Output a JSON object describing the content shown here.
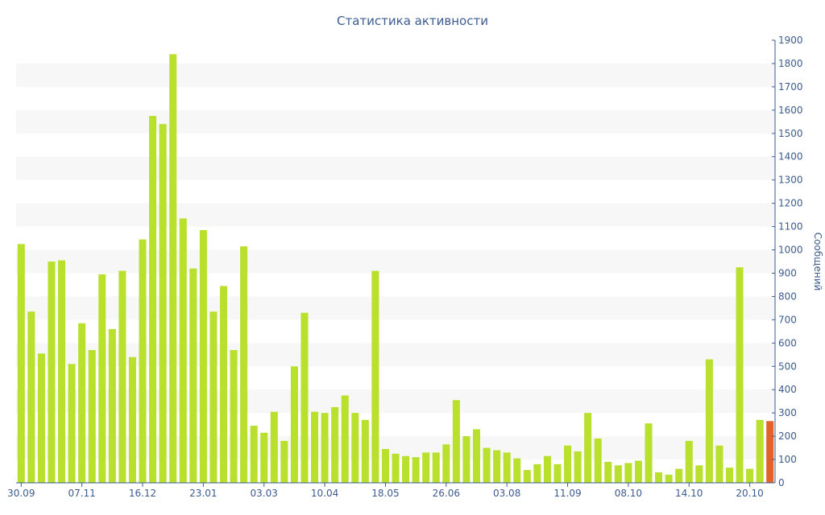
{
  "chart_data": {
    "type": "bar",
    "title": "Статистика активности",
    "ylabel": "Сообщений",
    "xlabel": "",
    "ylim": [
      0,
      1900
    ],
    "yticks": [
      0,
      100,
      200,
      300,
      400,
      500,
      600,
      700,
      800,
      900,
      1000,
      1100,
      1200,
      1300,
      1400,
      1500,
      1600,
      1700,
      1800,
      1900
    ],
    "x_tick_labels": [
      "30.09",
      "07.11",
      "16.12",
      "23.01",
      "03.03",
      "10.04",
      "18.05",
      "26.06",
      "03.08",
      "11.09",
      "08.10",
      "14.10",
      "20.10"
    ],
    "x_tick_positions": [
      0,
      6,
      12,
      18,
      24,
      30,
      36,
      42,
      48,
      54,
      60,
      66,
      72
    ],
    "values": [
      1025,
      735,
      555,
      950,
      955,
      510,
      685,
      570,
      895,
      660,
      910,
      540,
      1045,
      1575,
      1540,
      1840,
      1135,
      920,
      1085,
      735,
      845,
      570,
      1015,
      245,
      215,
      305,
      180,
      500,
      730,
      305,
      300,
      325,
      375,
      300,
      270,
      910,
      145,
      125,
      115,
      110,
      130,
      130,
      165,
      355,
      200,
      230,
      150,
      140,
      130,
      105,
      55,
      80,
      115,
      80,
      160,
      135,
      300,
      190,
      90,
      75,
      85,
      95,
      255,
      45,
      35,
      60,
      180,
      75,
      530,
      160,
      65,
      925,
      60,
      270,
      265
    ],
    "highlight_last": true,
    "colors": {
      "bar": "#b8e02c",
      "bar_highlight": "#e3622a",
      "stripe": "#f7f7f7",
      "axis": "#3e5b8f"
    },
    "grid": "horizontal bands",
    "y_axis_position": "right"
  }
}
